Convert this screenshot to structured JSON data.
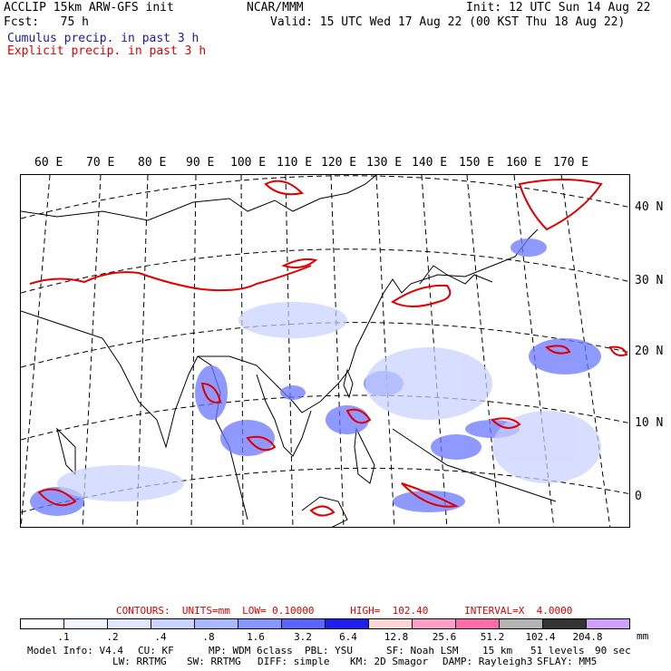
{
  "header": {
    "line1_left": "ACCLIP 15km ARW-GFS init",
    "line1_center": "NCAR/MMM",
    "line1_right": "Init: 12 UTC Sun 14 Aug 22",
    "line2_left": "Fcst:   75 h",
    "line2_right": "Valid: 15 UTC Wed 17 Aug 22 (00 KST Thu 18 Aug 22)",
    "legend_cumulus": "Cumulus precip. in past 3 h",
    "legend_explicit": "Explicit precip. in past 3 h"
  },
  "map": {
    "lon_labels": [
      "60 E",
      "70 E",
      "80 E",
      "90 E",
      "100 E",
      "110 E",
      "120 E",
      "130 E",
      "140 E",
      "150 E",
      "160 E",
      "170 E"
    ],
    "lat_labels": [
      "40 N",
      "30 N",
      "20 N",
      "10 N",
      "0"
    ]
  },
  "contours": {
    "text": "CONTOURS:  UNITS=mm  LOW= 0.10000      HIGH=  102.40      INTERVAL=X  4.0000"
  },
  "colorbar": {
    "colors": [
      "#ffffff",
      "#f2f6ff",
      "#e0e8ff",
      "#c8d4ff",
      "#aab8ff",
      "#8896ff",
      "#5a64ff",
      "#1e1ef0",
      "#ffd6d6",
      "#ff9ec8",
      "#ff6aa8",
      "#b4b4b4",
      "#333333",
      "#d0a0ff"
    ],
    "ticks": [
      ".1",
      ".2",
      ".4",
      ".8",
      "1.6",
      "3.2",
      "6.4",
      "12.8",
      "25.6",
      "51.2",
      "102.4",
      "204.8"
    ],
    "unit": "mm"
  },
  "footer": {
    "model_info": "Model Info: V4.4",
    "cu": "CU: KF",
    "mp": "MP: WDM 6class",
    "pbl": "PBL: YSU",
    "sf": "SF: Noah LSM",
    "res": "15 km",
    "levels": "51 levels",
    "dt": "90 sec",
    "lw": "LW: RRTMG",
    "sw": "SW: RRTMG",
    "diff": "DIFF: simple",
    "km": "KM: 2D Smagor",
    "damp": "DAMP: Rayleigh3",
    "sflay": "SFLAY: MM5"
  }
}
